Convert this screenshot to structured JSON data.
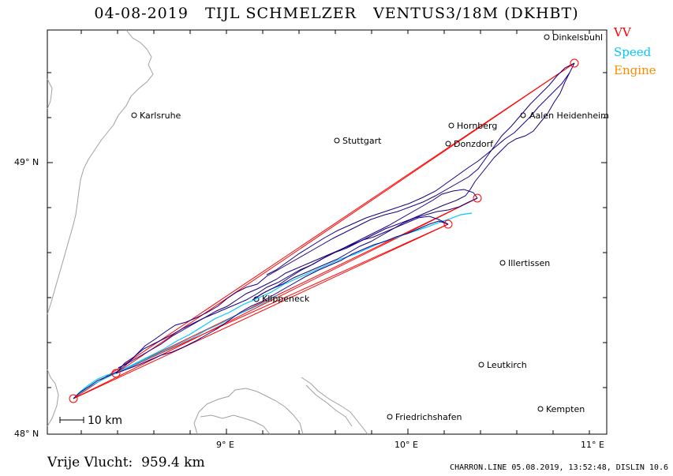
{
  "title": "04-08-2019   TIJL SCHMELZER   VENTUS3/18M (DKHBT)",
  "legend": [
    {
      "label": "VV",
      "color": "#ff0000"
    },
    {
      "label": "Speed",
      "color": "#00c8ff"
    },
    {
      "label": "Engine",
      "color": "#ff8c00"
    }
  ],
  "cities": [
    {
      "name": "Dinkelsbuhl"
    },
    {
      "name": "Karlsruhe"
    },
    {
      "name": "Hornberg"
    },
    {
      "name": "Aalen Heidenheim"
    },
    {
      "name": "Stuttgart"
    },
    {
      "name": "Donzdorf"
    },
    {
      "name": "Illertissen"
    },
    {
      "name": "Klippeneck"
    },
    {
      "name": "Leutkirch"
    },
    {
      "name": "Friedrichshafen"
    },
    {
      "name": "Kempten"
    }
  ],
  "axes": {
    "lat_labels": [
      "49° N",
      "48° N"
    ],
    "lon_labels": [
      "9° E",
      "10° E",
      "11° E"
    ]
  },
  "scale_bar": "10 km",
  "footer": {
    "distance": "Vrije Vlucht:  959.4 km",
    "credit": "CHARRON.LINE 05.08.2019, 13:52:48, DISLIN 10.6"
  },
  "colors": {
    "track": "#1a0080",
    "task": "#ff0000",
    "speed": "#00c8ff",
    "terrain": "#a0a0a0"
  }
}
